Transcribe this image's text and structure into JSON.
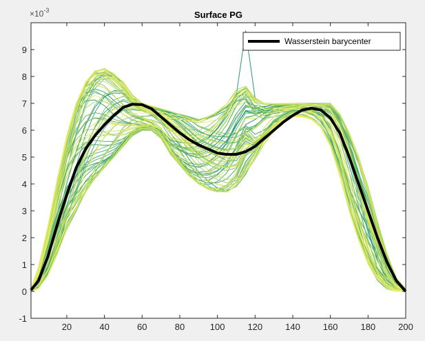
{
  "chart_data": {
    "type": "line",
    "title": "Surface PG",
    "xlabel": "",
    "ylabel": "",
    "y_exponent_label": "×10",
    "y_exponent_power": "-3",
    "xlim": [
      1,
      200
    ],
    "ylim": [
      -1,
      10
    ],
    "x_ticks": [
      20,
      40,
      60,
      80,
      100,
      120,
      140,
      160,
      180,
      200
    ],
    "x_tick_labels": [
      "20",
      "40",
      "60",
      "80",
      "100",
      "120",
      "140",
      "160",
      "180",
      "200"
    ],
    "y_ticks": [
      -1,
      0,
      1,
      2,
      3,
      4,
      5,
      6,
      7,
      8,
      9
    ],
    "y_tick_labels": [
      "-1",
      "0",
      "1",
      "2",
      "3",
      "4",
      "5",
      "6",
      "7",
      "8",
      "9"
    ],
    "grid": false,
    "legend": {
      "placement": "top-right",
      "entries": [
        "Wasserstein barycenter"
      ]
    },
    "colormap": [
      "#0b8a6c",
      "#3aa56a",
      "#7cc060",
      "#bcd95b",
      "#f4f36a"
    ],
    "series_color": "#000000",
    "highlight_series": {
      "name": "Wasserstein barycenter",
      "x": [
        1,
        5,
        10,
        15,
        20,
        25,
        30,
        35,
        40,
        45,
        50,
        55,
        60,
        65,
        70,
        75,
        80,
        85,
        90,
        95,
        100,
        105,
        110,
        115,
        120,
        125,
        130,
        135,
        140,
        145,
        150,
        155,
        160,
        165,
        170,
        175,
        180,
        185,
        190,
        195,
        200
      ],
      "values": [
        0.05,
        0.4,
        1.3,
        2.5,
        3.6,
        4.6,
        5.3,
        5.8,
        6.2,
        6.55,
        6.85,
        6.97,
        6.95,
        6.8,
        6.5,
        6.2,
        5.9,
        5.65,
        5.45,
        5.3,
        5.15,
        5.1,
        5.1,
        5.2,
        5.4,
        5.7,
        6.0,
        6.3,
        6.55,
        6.75,
        6.82,
        6.75,
        6.45,
        5.9,
        5.0,
        4.0,
        3.0,
        2.0,
        1.1,
        0.4,
        0.0
      ]
    },
    "background_curves": {
      "count": 80,
      "x": [
        1,
        5,
        10,
        15,
        20,
        25,
        30,
        35,
        40,
        45,
        50,
        55,
        60,
        65,
        70,
        75,
        80,
        85,
        90,
        95,
        100,
        105,
        110,
        115,
        120,
        125,
        130,
        135,
        140,
        145,
        150,
        155,
        160,
        165,
        170,
        175,
        180,
        185,
        190,
        195,
        200
      ],
      "y_envelope_min": [
        0.0,
        0.1,
        0.6,
        1.4,
        2.3,
        3.0,
        3.7,
        4.2,
        4.6,
        5.0,
        5.4,
        5.8,
        6.0,
        6.0,
        5.7,
        5.1,
        4.7,
        4.3,
        4.0,
        3.8,
        3.7,
        3.7,
        3.9,
        4.3,
        4.9,
        5.5,
        6.0,
        6.3,
        6.5,
        6.5,
        6.4,
        6.1,
        5.4,
        4.3,
        3.0,
        1.9,
        1.0,
        0.4,
        0.1,
        0.0,
        0.0
      ],
      "y_envelope_max": [
        0.1,
        0.9,
        2.4,
        4.2,
        5.8,
        7.0,
        7.8,
        8.2,
        8.3,
        8.1,
        7.8,
        7.3,
        7.0,
        6.9,
        6.8,
        6.7,
        6.6,
        6.5,
        6.4,
        6.5,
        6.7,
        7.0,
        7.5,
        9.8,
        7.2,
        7.0,
        7.0,
        7.0,
        7.0,
        7.0,
        7.0,
        7.0,
        7.0,
        6.6,
        5.9,
        5.0,
        3.9,
        2.6,
        1.4,
        0.5,
        0.1
      ]
    }
  }
}
